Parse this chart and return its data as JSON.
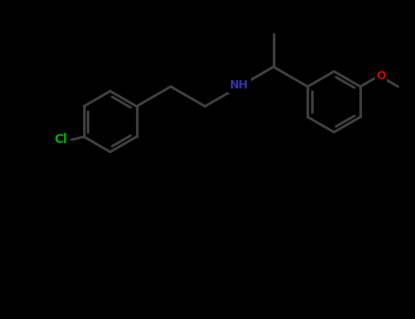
{
  "background_color": "#000000",
  "bond_color": "#404040",
  "N_color": "#3333aa",
  "O_color": "#cc0000",
  "Cl_color": "#00aa00",
  "line_width": 2.0,
  "font_size": 9,
  "fig_width": 4.55,
  "fig_height": 3.5,
  "dpi": 100,
  "xlim": [
    -1.5,
    11.5
  ],
  "ylim": [
    -1.0,
    9.5
  ]
}
